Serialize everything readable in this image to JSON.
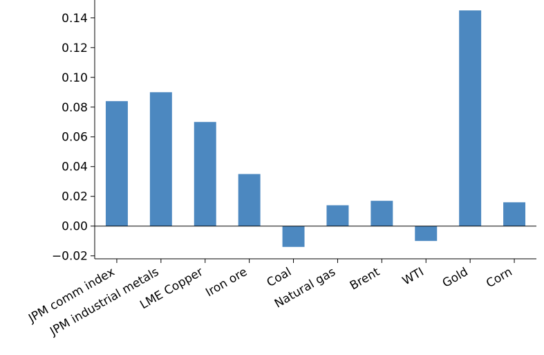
{
  "chart_data": {
    "type": "bar",
    "title": "",
    "xlabel": "",
    "ylabel": "",
    "categories": [
      "JPM comm index",
      "JPM industrial metals",
      "LME Copper",
      "Iron ore",
      "Coal",
      "Natural gas",
      "Brent",
      "WTI",
      "Gold",
      "Corn"
    ],
    "values": [
      0.084,
      0.09,
      0.07,
      0.035,
      -0.014,
      0.014,
      0.017,
      -0.01,
      0.145,
      0.016
    ],
    "ylim": [
      -0.022,
      0.152
    ],
    "yticks": [
      -0.02,
      0.0,
      0.02,
      0.04,
      0.06,
      0.08,
      0.1,
      0.12,
      0.14
    ],
    "ytick_labels": [
      "−0.02",
      "0.00",
      "0.02",
      "0.04",
      "0.06",
      "0.08",
      "0.10",
      "0.12",
      "0.14"
    ],
    "bar_color": "#4c88c0",
    "grid": false,
    "legend": "none"
  }
}
